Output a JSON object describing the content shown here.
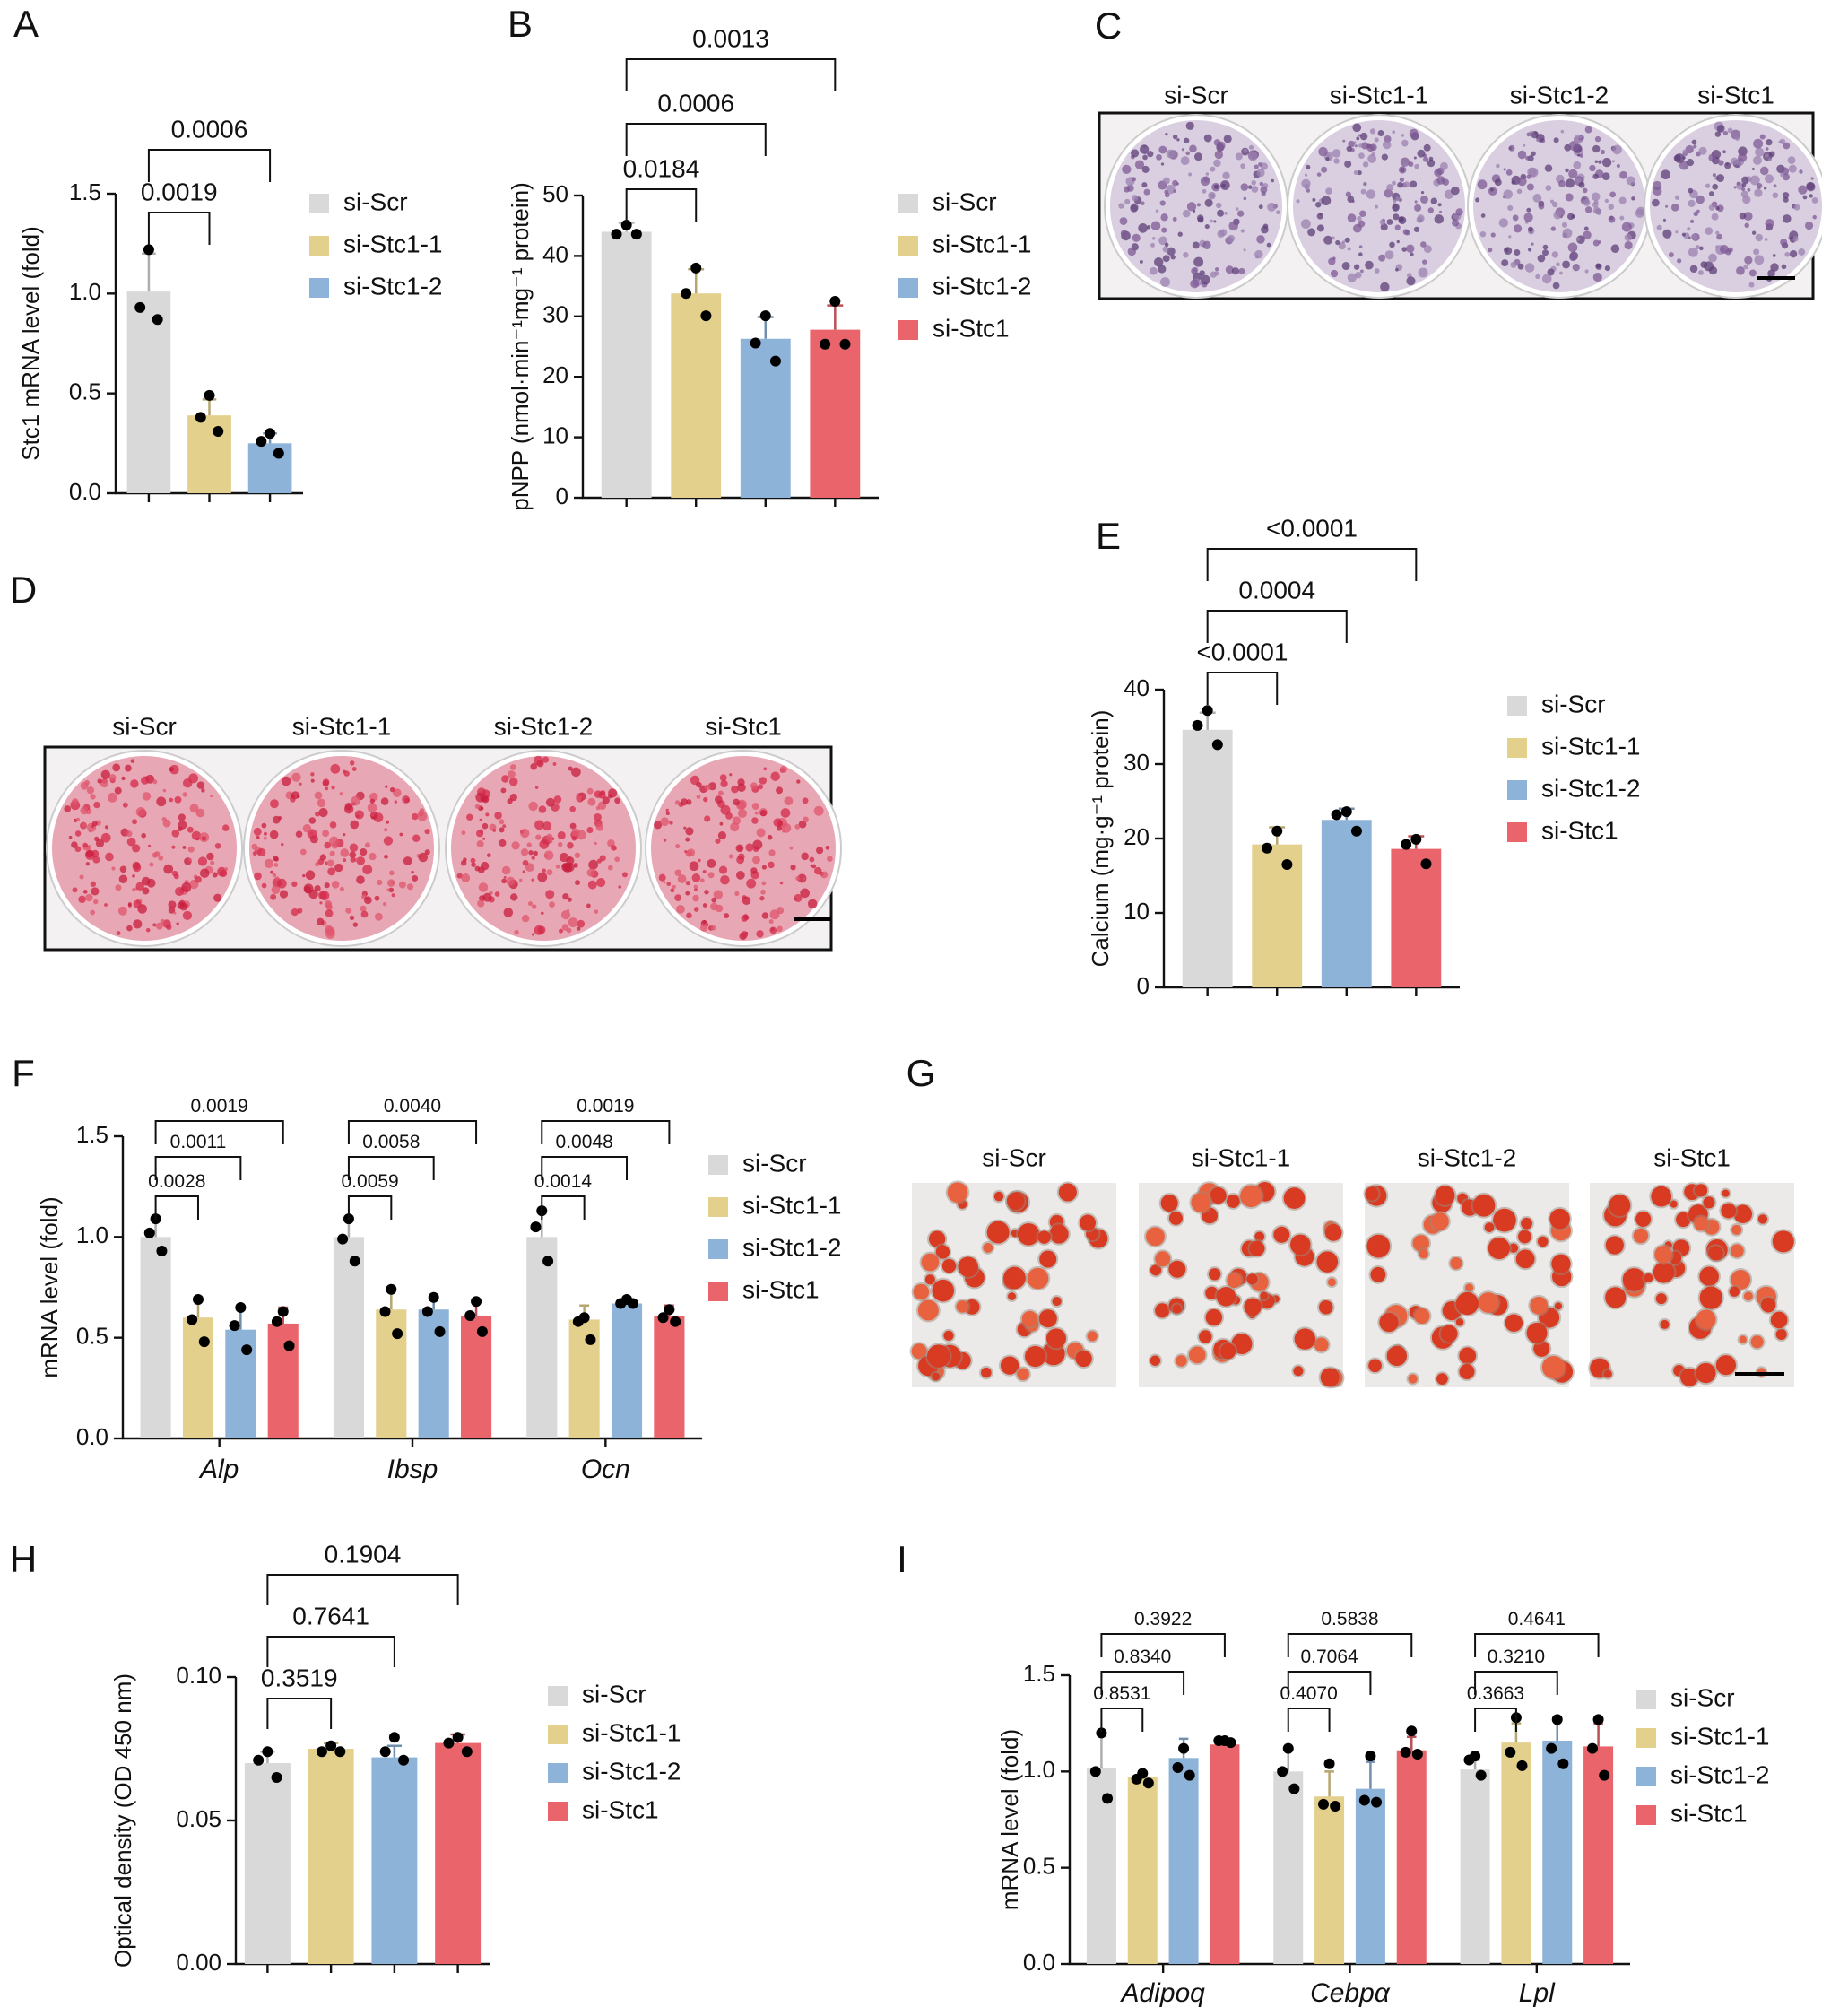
{
  "chart_data": [
    {
      "type": "bar",
      "label": "A",
      "y_label": "Stc1 mRNA level (fold)",
      "categories": [
        null
      ],
      "ylim": [
        0,
        1.5
      ],
      "yticks": [
        {
          "value": 0,
          "label": "0.0"
        },
        0.5,
        {
          "value": 1,
          "label": "1.0"
        },
        1.5
      ],
      "series": [
        {
          "name": "si-Scr",
          "color": "#d9d9d9",
          "values": [
            1.01
          ],
          "errors": [
            0.19
          ],
          "points": [
            [
              1.22,
              0.93,
              0.87
            ]
          ]
        },
        {
          "name": "si-Stc1-1",
          "color": "#e3d08c",
          "values": [
            0.39
          ],
          "errors": [
            0.08
          ],
          "points": [
            [
              0.49,
              0.38,
              0.31
            ]
          ]
        },
        {
          "name": "si-Stc1-2",
          "color": "#8db3d8",
          "values": [
            0.25
          ],
          "errors": [
            0.05
          ],
          "points": [
            [
              0.3,
              0.26,
              0.2
            ]
          ]
        }
      ],
      "brackets": [
        [
          {
            "from": 0,
            "to": 1,
            "label": "0.0019"
          },
          {
            "from": 0,
            "to": 2,
            "label": "0.0006"
          }
        ]
      ]
    },
    {
      "type": "bar",
      "label": "B",
      "y_label": "pNPP (nmol·min⁻¹mg⁻¹ protein)",
      "categories": [
        null
      ],
      "ylim": [
        0,
        50
      ],
      "yticks": [
        0,
        10,
        20,
        30,
        40,
        50
      ],
      "series": [
        {
          "name": "si-Scr",
          "color": "#d9d9d9",
          "values": [
            44.0
          ],
          "errors": [
            1.5
          ],
          "points": [
            [
              45.1,
              43.6,
              43.6
            ]
          ]
        },
        {
          "name": "si-Stc1-1",
          "color": "#e3d08c",
          "values": [
            33.8
          ],
          "errors": [
            4.0
          ],
          "points": [
            [
              38.0,
              33.8,
              30.1
            ]
          ]
        },
        {
          "name": "si-Stc1-2",
          "color": "#8db3d8",
          "values": [
            26.3
          ],
          "errors": [
            3.6
          ],
          "points": [
            [
              30.1,
              25.6,
              22.6
            ]
          ]
        },
        {
          "name": "si-Stc1",
          "color": "#e9646b",
          "values": [
            27.8
          ],
          "errors": [
            4.0
          ],
          "points": [
            [
              32.5,
              25.4,
              25.4
            ]
          ]
        }
      ],
      "brackets": [
        [
          {
            "from": 0,
            "to": 1,
            "label": "0.0184"
          },
          {
            "from": 0,
            "to": 2,
            "label": "0.0006"
          },
          {
            "from": 0,
            "to": 3,
            "label": "0.0013"
          }
        ]
      ]
    },
    {
      "type": "bar",
      "label": "E",
      "y_label": "Calcium (mg·g⁻¹ protein)",
      "categories": [
        null
      ],
      "ylim": [
        0,
        40
      ],
      "yticks": [
        0,
        10,
        20,
        30,
        40
      ],
      "series": [
        {
          "name": "si-Scr",
          "color": "#d9d9d9",
          "values": [
            34.6
          ],
          "errors": [
            2.3
          ],
          "points": [
            [
              37.2,
              35.2,
              32.6
            ]
          ]
        },
        {
          "name": "si-Stc1-1",
          "color": "#e3d08c",
          "values": [
            19.2
          ],
          "errors": [
            2.3
          ],
          "points": [
            [
              21.0,
              18.7,
              16.5
            ]
          ]
        },
        {
          "name": "si-Stc1-2",
          "color": "#8db3d8",
          "values": [
            22.5
          ],
          "errors": [
            1.5
          ],
          "points": [
            [
              23.6,
              23.2,
              21.0
            ]
          ]
        },
        {
          "name": "si-Stc1",
          "color": "#e9646b",
          "values": [
            18.6
          ],
          "errors": [
            1.7
          ],
          "points": [
            [
              19.9,
              19.2,
              16.6
            ]
          ]
        }
      ],
      "brackets": [
        [
          {
            "from": 0,
            "to": 1,
            "label": "<0.0001"
          },
          {
            "from": 0,
            "to": 2,
            "label": "0.0004"
          },
          {
            "from": 0,
            "to": 3,
            "label": "<0.0001"
          }
        ]
      ]
    },
    {
      "type": "bar",
      "label": "F",
      "y_label": "mRNA level (fold)",
      "categories": [
        "Alp",
        "Ibsp",
        "Ocn"
      ],
      "ylim": [
        0,
        1.5
      ],
      "yticks": [
        {
          "value": 0,
          "label": "0.0"
        },
        0.5,
        {
          "value": 1,
          "label": "1.0"
        },
        1.5
      ],
      "series": [
        {
          "name": "si-Scr",
          "color": "#d9d9d9",
          "values": [
            1.0,
            1.0,
            1.0
          ],
          "errors": [
            0.1,
            0.1,
            0.12
          ],
          "points": [
            [
              1.09,
              1.02,
              0.93
            ],
            [
              1.09,
              0.99,
              0.88
            ],
            [
              1.13,
              1.05,
              0.88
            ]
          ]
        },
        {
          "name": "si-Stc1-1",
          "color": "#e3d08c",
          "values": [
            0.6,
            0.64,
            0.59
          ],
          "errors": [
            0.1,
            0.11,
            0.07
          ],
          "points": [
            [
              0.69,
              0.59,
              0.48
            ],
            [
              0.74,
              0.63,
              0.52
            ],
            [
              0.6,
              0.58,
              0.49
            ]
          ]
        },
        {
          "name": "si-Stc1-2",
          "color": "#8db3d8",
          "values": [
            0.54,
            0.64,
            0.67
          ],
          "errors": [
            0.1,
            0.07,
            0.02
          ],
          "points": [
            [
              0.65,
              0.56,
              0.44
            ],
            [
              0.7,
              0.63,
              0.53
            ],
            [
              0.69,
              0.67,
              0.67
            ]
          ]
        },
        {
          "name": "si-Stc1",
          "color": "#e9646b",
          "values": [
            0.57,
            0.61,
            0.61
          ],
          "errors": [
            0.08,
            0.07,
            0.05
          ],
          "points": [
            [
              0.63,
              0.58,
              0.46
            ],
            [
              0.68,
              0.61,
              0.53
            ],
            [
              0.64,
              0.6,
              0.58
            ]
          ]
        }
      ],
      "brackets": [
        [
          {
            "from": 0,
            "to": 1,
            "label": "0.0028"
          },
          {
            "from": 0,
            "to": 2,
            "label": "0.0011"
          },
          {
            "from": 0,
            "to": 3,
            "label": "0.0019"
          }
        ],
        [
          {
            "from": 0,
            "to": 1,
            "label": "0.0059"
          },
          {
            "from": 0,
            "to": 2,
            "label": "0.0058"
          },
          {
            "from": 0,
            "to": 3,
            "label": "0.0040"
          }
        ],
        [
          {
            "from": 0,
            "to": 1,
            "label": "0.0014"
          },
          {
            "from": 0,
            "to": 2,
            "label": "0.0048"
          },
          {
            "from": 0,
            "to": 3,
            "label": "0.0019"
          }
        ]
      ]
    },
    {
      "type": "bar",
      "label": "H",
      "y_label": "Optical density (OD 450 nm)",
      "categories": [
        null
      ],
      "ylim": [
        0,
        0.1
      ],
      "yticks": [
        {
          "value": 0,
          "label": "0.00"
        },
        0.05,
        {
          "value": 0.1,
          "label": "0.10"
        }
      ],
      "series": [
        {
          "name": "si-Scr",
          "color": "#d9d9d9",
          "values": [
            0.07
          ],
          "errors": [
            0.004
          ],
          "points": [
            [
              0.074,
              0.071,
              0.065
            ]
          ]
        },
        {
          "name": "si-Stc1-1",
          "color": "#e3d08c",
          "values": [
            0.075
          ],
          "errors": [
            0.002
          ],
          "points": [
            [
              0.076,
              0.074,
              0.074
            ]
          ]
        },
        {
          "name": "si-Stc1-2",
          "color": "#8db3d8",
          "values": [
            0.072
          ],
          "errors": [
            0.004
          ],
          "points": [
            [
              0.079,
              0.074,
              0.071
            ]
          ]
        },
        {
          "name": "si-Stc1",
          "color": "#e9646b",
          "values": [
            0.077
          ],
          "errors": [
            0.003
          ],
          "points": [
            [
              0.079,
              0.077,
              0.074
            ]
          ]
        }
      ],
      "brackets": [
        [
          {
            "from": 0,
            "to": 1,
            "label": "0.3519"
          },
          {
            "from": 0,
            "to": 2,
            "label": "0.7641"
          },
          {
            "from": 0,
            "to": 3,
            "label": "0.1904"
          }
        ]
      ]
    },
    {
      "type": "bar",
      "label": "I",
      "y_label": "mRNA level (fold)",
      "categories": [
        "Adipoq",
        "Cebpα",
        "Lpl"
      ],
      "ylim": [
        0,
        1.5
      ],
      "yticks": [
        {
          "value": 0,
          "label": "0.0"
        },
        0.5,
        {
          "value": 1,
          "label": "1.0"
        },
        1.5
      ],
      "series": [
        {
          "name": "si-Scr",
          "color": "#d9d9d9",
          "values": [
            1.02,
            1.0,
            1.01
          ],
          "errors": [
            0.17,
            0.11,
            0.05
          ],
          "points": [
            [
              1.2,
              1.0,
              0.86
            ],
            [
              1.12,
              1.0,
              0.91
            ],
            [
              1.08,
              1.06,
              0.98
            ]
          ]
        },
        {
          "name": "si-Stc1-1",
          "color": "#e3d08c",
          "values": [
            0.97,
            0.87,
            1.15
          ],
          "errors": [
            0.03,
            0.13,
            0.1
          ],
          "points": [
            [
              0.99,
              0.96,
              0.94
            ],
            [
              1.04,
              0.83,
              0.82
            ],
            [
              1.28,
              1.1,
              1.03
            ]
          ]
        },
        {
          "name": "si-Stc1-2",
          "color": "#8db3d8",
          "values": [
            1.07,
            0.91,
            1.16
          ],
          "errors": [
            0.1,
            0.14,
            0.12
          ],
          "points": [
            [
              1.12,
              1.02,
              0.98
            ],
            [
              1.08,
              0.85,
              0.84
            ],
            [
              1.27,
              1.12,
              1.04
            ]
          ]
        },
        {
          "name": "si-Stc1",
          "color": "#e9646b",
          "values": [
            1.14,
            1.11,
            1.13
          ],
          "errors": [
            0.01,
            0.07,
            0.12
          ],
          "points": [
            [
              1.16,
              1.16,
              1.15
            ],
            [
              1.21,
              1.1,
              1.09
            ],
            [
              1.27,
              1.12,
              0.98
            ]
          ]
        }
      ],
      "brackets": [
        [
          {
            "from": 0,
            "to": 1,
            "label": "0.8531"
          },
          {
            "from": 0,
            "to": 2,
            "label": "0.8340"
          },
          {
            "from": 0,
            "to": 3,
            "label": "0.3922"
          }
        ],
        [
          {
            "from": 0,
            "to": 1,
            "label": "0.4070"
          },
          {
            "from": 0,
            "to": 2,
            "label": "0.7064"
          },
          {
            "from": 0,
            "to": 3,
            "label": "0.5838"
          }
        ],
        [
          {
            "from": 0,
            "to": 1,
            "label": "0.3663"
          },
          {
            "from": 0,
            "to": 2,
            "label": "0.3210"
          },
          {
            "from": 0,
            "to": 3,
            "label": "0.4641"
          }
        ]
      ]
    }
  ],
  "panels": [
    {
      "label": "C",
      "columns": [
        "si-Scr",
        "si-Stc1-1",
        "si-Stc1-2",
        "si-Stc1"
      ]
    },
    {
      "label": "D",
      "columns": [
        "si-Scr",
        "si-Stc1-1",
        "si-Stc1-2",
        "si-Stc1"
      ]
    },
    {
      "label": "G",
      "columns": [
        "si-Scr",
        "si-Stc1-1",
        "si-Stc1-2",
        "si-Stc1"
      ]
    }
  ]
}
